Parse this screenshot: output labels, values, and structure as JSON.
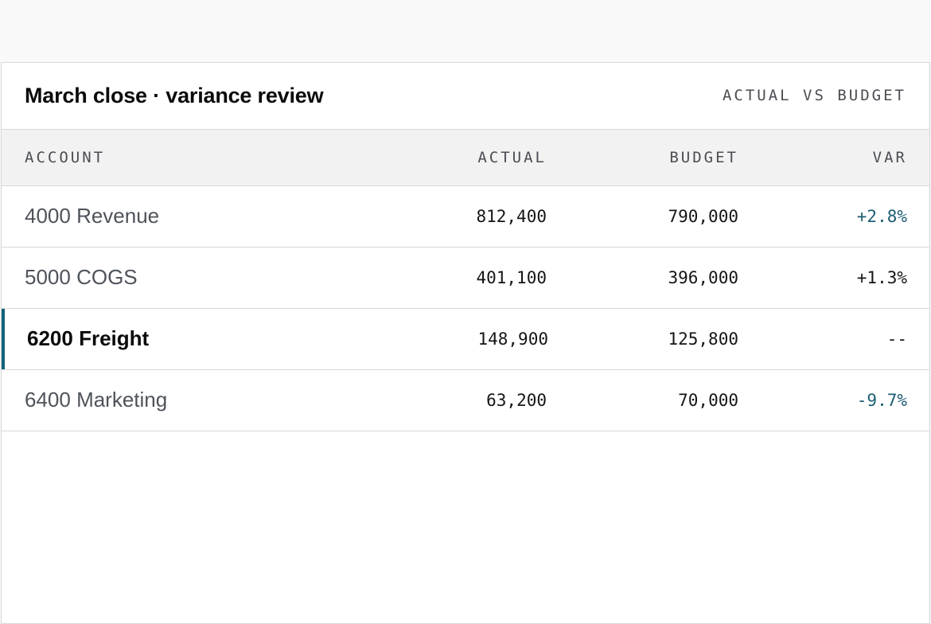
{
  "panel": {
    "title": "March close · variance review",
    "subtitle": "ACTUAL VS BUDGET"
  },
  "table": {
    "headers": {
      "account": "ACCOUNT",
      "actual": "ACTUAL",
      "budget": "BUDGET",
      "var": "VAR"
    },
    "rows": [
      {
        "account": "4000 Revenue",
        "actual": "812,400",
        "budget": "790,000",
        "var": "+2.8%"
      },
      {
        "account": "5000 COGS",
        "actual": "401,100",
        "budget": "396,000",
        "var": "+1.3%"
      },
      {
        "account": "6200 Freight",
        "actual": "148,900",
        "budget": "125,800",
        "var": "--"
      },
      {
        "account": "6400 Marketing",
        "actual": "63,200",
        "budget": "70,000",
        "var": "-9.7%"
      }
    ]
  },
  "colors": {
    "accent": "#14627a",
    "variance_teal": "#1d5e72"
  }
}
